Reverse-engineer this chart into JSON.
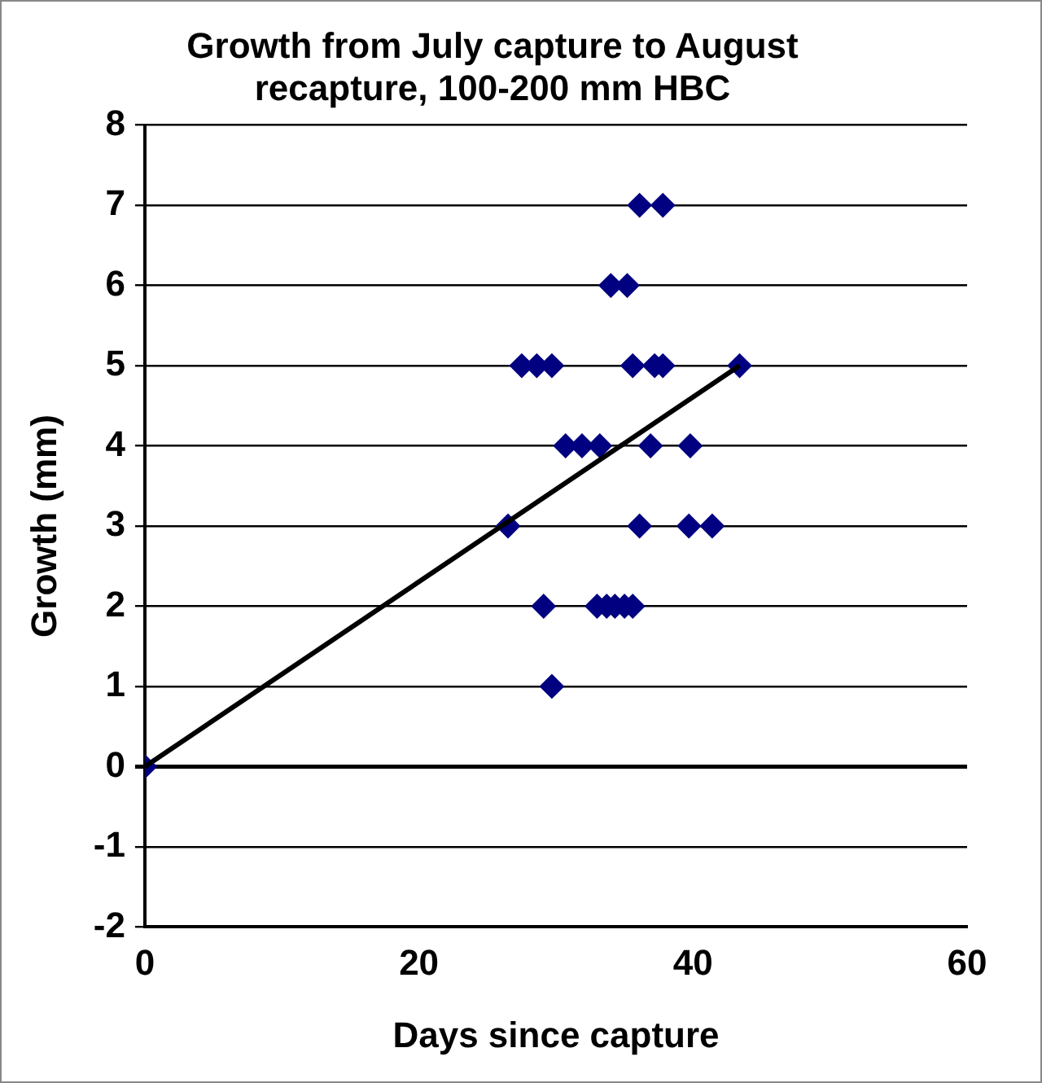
{
  "chart_data": {
    "type": "scatter",
    "title": "Growth from July capture to August recapture, 100-200 mm HBC",
    "xlabel": "Days since capture",
    "ylabel": "Growth (mm)",
    "series": [
      {
        "type": "scatter",
        "color": "#000080",
        "x": [
          0,
          36.1,
          37.8,
          34.0,
          35.2,
          27.5,
          28.6,
          29.7,
          35.6,
          37.2,
          37.8,
          43.4,
          30.7,
          31.9,
          33.2,
          36.9,
          39.8,
          26.5,
          36.1,
          39.7,
          41.4,
          29.1,
          33.0,
          33.7,
          34.3,
          35.0,
          35.6,
          29.7
        ],
        "values": [
          0,
          7,
          7,
          6,
          6,
          5,
          5,
          5,
          5,
          5,
          5,
          5,
          4,
          4,
          4,
          4,
          4,
          3,
          3,
          3,
          3,
          2,
          2,
          2,
          2,
          2,
          2,
          1
        ]
      },
      {
        "type": "line",
        "color": "#000000",
        "marker": "none",
        "x": [
          0,
          43.4
        ],
        "values": [
          0,
          5
        ]
      }
    ],
    "xlim": [
      0,
      60
    ],
    "xticks": [
      0,
      20,
      40,
      60
    ],
    "ylim": [
      -2,
      8
    ],
    "yticks": [
      -2,
      -1,
      0,
      1,
      2,
      3,
      4,
      5,
      6,
      7,
      8
    ],
    "grid": "y",
    "marker": "diamond",
    "legend": false
  }
}
